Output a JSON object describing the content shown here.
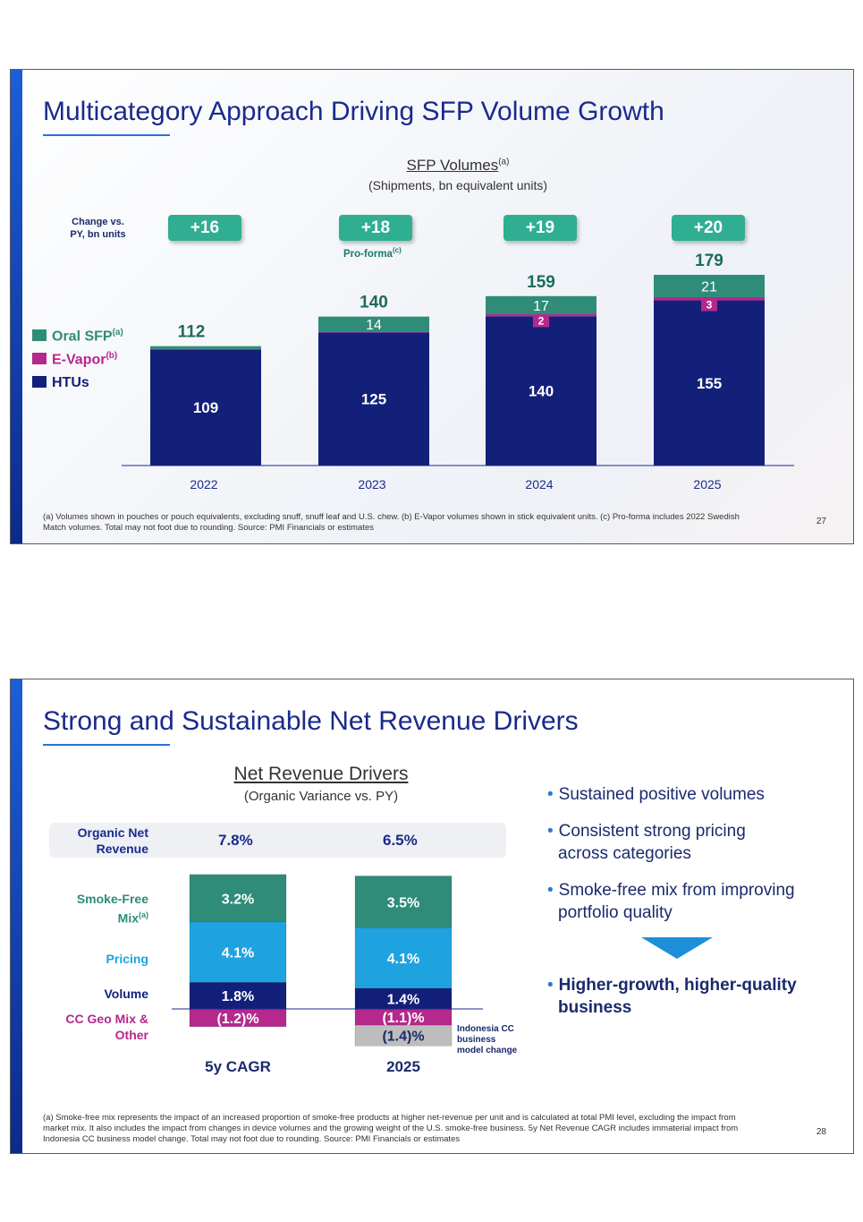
{
  "slide1": {
    "title": "Multicategory Approach Driving SFP Volume Growth",
    "chart_title": "SFP Volumes",
    "chart_title_sup": "(a)",
    "chart_subtitle": "(Shipments, bn equivalent units)",
    "change_label_line1": "Change vs.",
    "change_label_line2": "PY, bn units",
    "proforma_label": "Pro-forma",
    "proforma_sup": "(c)",
    "legend": {
      "oral": "Oral SFP",
      "oral_sup": "(a)",
      "evapor": "E-Vapor",
      "evapor_sup": "(b)",
      "htus": "HTUs"
    },
    "footnote_line1": "(a) Volumes shown in pouches or pouch equivalents, excluding snuff, snuff leaf and U.S. chew. (b) E-Vapor volumes shown in stick equivalent units. (c) Pro-forma includes 2022 Swedish",
    "footnote_line2": "Match volumes. Total may not foot due to rounding. Source: PMI Financials or estimates",
    "page_number": "27",
    "colors": {
      "htus": "#13207a",
      "evapor": "#b5288c",
      "oral": "#2e8c78",
      "badge": "#2fae92",
      "title": "#1a2a8c"
    }
  },
  "slide2": {
    "title": "Strong and Sustainable Net Revenue Drivers",
    "chart_title": "Net Revenue Drivers",
    "chart_subtitle": "(Organic Variance vs. PY)",
    "row_labels": {
      "onr_line1": "Organic Net",
      "onr_line2": "Revenue",
      "sfmix_line1": "Smoke-Free",
      "sfmix_line2": "Mix",
      "sfmix_sup": "(a)",
      "pricing": "Pricing",
      "volume": "Volume",
      "ccgeo_line1": "CC Geo Mix &",
      "ccgeo_line2": "Other"
    },
    "indonesia_note_line1": "Indonesia CC",
    "indonesia_note_line2": "business",
    "indonesia_note_line3": "model change",
    "bullets": [
      {
        "line1": "Sustained positive volumes",
        "line2": ""
      },
      {
        "line1": "Consistent strong pricing",
        "line2": "across categories"
      },
      {
        "line1": "Smoke-free mix from improving",
        "line2": "portfolio quality"
      },
      {
        "line1": "Higher-growth, higher-quality",
        "line2": "business"
      }
    ],
    "footnote_line1": "(a) Smoke-free mix represents the impact of an increased proportion of smoke-free products at higher net-revenue per unit and is calculated at total PMI level, excluding the impact from",
    "footnote_line2": "market mix. It also includes the impact from changes in device volumes and the growing weight of the U.S. smoke-free business. 5y Net Revenue CAGR includes immaterial impact from",
    "footnote_line3": "Indonesia CC business model change. Total may not foot due to rounding. Source: PMI Financials or estimates",
    "page_number": "28",
    "colors": {
      "sfmix": "#2e8c78",
      "pricing": "#1fa3e0",
      "volume": "#13207a",
      "ccgeo": "#b5288c",
      "indonesia": "#bdbdbd",
      "arrow": "#1c8fd8"
    }
  },
  "chart_data": [
    {
      "type": "bar",
      "stacked": true,
      "title": "SFP Volumes",
      "subtitle": "(Shipments, bn equivalent units)",
      "categories": [
        "2022",
        "2023",
        "2024",
        "2025"
      ],
      "series": [
        {
          "name": "HTUs",
          "values": [
            109,
            125,
            140,
            155
          ]
        },
        {
          "name": "E-Vapor",
          "values": [
            0.4,
            0.8,
            2,
            3
          ]
        },
        {
          "name": "Oral SFP",
          "values": [
            2.6,
            14,
            17,
            21
          ]
        }
      ],
      "segment_labels": {
        "HTUs": [
          "109",
          "125",
          "140",
          "155"
        ],
        "E-Vapor": [
          "",
          "",
          "2",
          "3"
        ],
        "Oral SFP": [
          "",
          "14",
          "17",
          "21"
        ]
      },
      "totals": [
        112,
        140,
        159,
        179
      ],
      "total_labels": [
        "112",
        "140",
        "159",
        "179"
      ],
      "change_vs_py": [
        "+16",
        "+18",
        "+19",
        "+20"
      ],
      "ylim": [
        0,
        190
      ]
    },
    {
      "type": "bar",
      "stacked": true,
      "diverging": true,
      "title": "Net Revenue Drivers",
      "subtitle": "(Organic Variance vs. PY)",
      "categories": [
        "5y CAGR",
        "2025"
      ],
      "organic_net_revenue": [
        "7.8%",
        "6.5%"
      ],
      "series": [
        {
          "name": "Volume",
          "values": [
            1.8,
            1.4
          ],
          "labels": [
            "1.8%",
            "1.4%"
          ]
        },
        {
          "name": "Pricing",
          "values": [
            4.1,
            4.1
          ],
          "labels": [
            "4.1%",
            "4.1%"
          ]
        },
        {
          "name": "Smoke-Free Mix",
          "values": [
            3.2,
            3.5
          ],
          "labels": [
            "3.2%",
            "3.5%"
          ]
        },
        {
          "name": "CC Geo Mix & Other",
          "values": [
            -1.2,
            -1.1
          ],
          "labels": [
            "(1.2)%",
            "(1.1)%"
          ]
        },
        {
          "name": "Indonesia CC business model change",
          "values": [
            0,
            -1.4
          ],
          "labels": [
            "",
            "(1.4)%"
          ]
        }
      ]
    }
  ]
}
